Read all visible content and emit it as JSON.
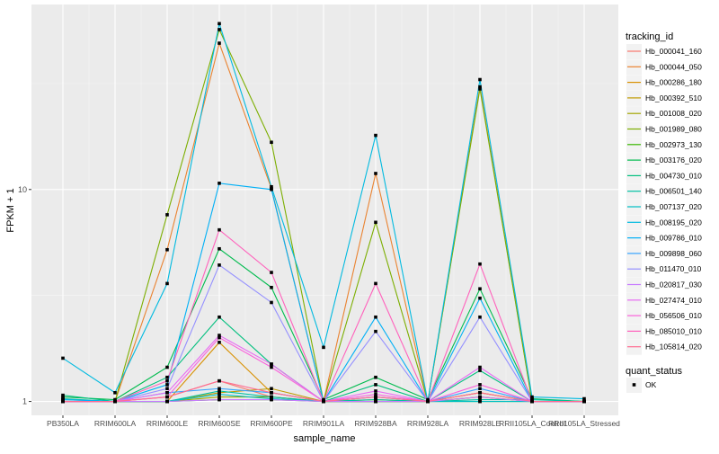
{
  "chart_data": {
    "type": "line",
    "xlabel": "sample_name",
    "ylabel": "FPKM + 1",
    "yscale": "log10",
    "ylim": [
      0.86,
      74.6
    ],
    "yticks": [
      {
        "value": 1,
        "label": "1"
      },
      {
        "value": 10,
        "label": "10"
      }
    ],
    "categories": [
      "PB350LA",
      "RRIM600LA",
      "RRIM600LE",
      "RRIM600SE",
      "RRIM600PE",
      "RRIM901LA",
      "RRIM928BA",
      "RRIM928LA",
      "RRIM928LE",
      "RRII105LA_Control",
      "RRII105LA_Stressed"
    ],
    "legend_title": "tracking_id",
    "legend_position": "right",
    "shape_legend": {
      "title": "quant_status",
      "entries": [
        "OK"
      ]
    },
    "series": [
      {
        "name": "Hb_000041_160",
        "color": "#F8766D",
        "values": [
          1.02,
          1.0,
          1.05,
          1.25,
          1.05,
          1.0,
          1.05,
          1.0,
          1.1,
          1.0,
          1.0
        ]
      },
      {
        "name": "Hb_000044_050",
        "color": "#EA8331",
        "values": [
          1.0,
          1.0,
          5.2,
          49,
          10.1,
          1.0,
          11.9,
          1.0,
          30.5,
          1.0,
          1.0
        ]
      },
      {
        "name": "Hb_000286_180",
        "color": "#D89000",
        "values": [
          1.0,
          1.0,
          1.0,
          1.9,
          1.1,
          1.0,
          1.02,
          1.0,
          1.05,
          1.0,
          1.0
        ]
      },
      {
        "name": "Hb_000392_510",
        "color": "#C09B00",
        "values": [
          1.0,
          1.0,
          1.0,
          1.1,
          1.15,
          1.0,
          1.0,
          1.0,
          1.1,
          1.0,
          1.0
        ]
      },
      {
        "name": "Hb_001008_020",
        "color": "#A3A500",
        "values": [
          1.0,
          1.0,
          1.0,
          1.05,
          1.05,
          1.0,
          1.0,
          1.0,
          1.05,
          1.0,
          1.0
        ]
      },
      {
        "name": "Hb_001989_080",
        "color": "#7CAE00",
        "values": [
          1.0,
          1.0,
          7.6,
          56.8,
          16.7,
          1.0,
          7.0,
          1.0,
          29.8,
          1.0,
          1.0
        ]
      },
      {
        "name": "Hb_002973_130",
        "color": "#39B600",
        "values": [
          1.0,
          1.0,
          1.0,
          1.02,
          1.02,
          1.0,
          1.0,
          1.0,
          1.0,
          1.0,
          1.0
        ]
      },
      {
        "name": "Hb_003176_020",
        "color": "#00BB4E",
        "values": [
          1.05,
          1.02,
          1.45,
          5.25,
          3.45,
          1.02,
          1.3,
          1.02,
          3.4,
          1.03,
          1.0
        ]
      },
      {
        "name": "Hb_004730_010",
        "color": "#00BF7D",
        "values": [
          1.07,
          1.0,
          1.3,
          2.5,
          1.5,
          1.0,
          1.2,
          1.0,
          1.4,
          1.0,
          1.0
        ]
      },
      {
        "name": "Hb_006501_140",
        "color": "#00C1A3",
        "values": [
          1.03,
          1.0,
          1.0,
          1.12,
          1.05,
          1.0,
          1.02,
          1.0,
          1.02,
          1.02,
          1.0
        ]
      },
      {
        "name": "Hb_007137_020",
        "color": "#00BFC4",
        "values": [
          1.0,
          1.0,
          1.0,
          1.08,
          1.03,
          1.0,
          1.0,
          1.0,
          1.0,
          1.0,
          1.0
        ]
      },
      {
        "name": "Hb_008195_020",
        "color": "#00BAE0",
        "values": [
          1.6,
          1.1,
          3.6,
          60.6,
          10.3,
          1.8,
          18,
          1.0,
          33,
          1.05,
          1.03
        ]
      },
      {
        "name": "Hb_009786_010",
        "color": "#00B0F6",
        "values": [
          1.02,
          1.0,
          1.2,
          10.7,
          10.0,
          1.0,
          2.5,
          1.0,
          3.07,
          1.0,
          1.0
        ]
      },
      {
        "name": "Hb_009898_060",
        "color": "#35A2FF",
        "values": [
          1.0,
          1.0,
          1.1,
          1.15,
          1.1,
          1.0,
          1.05,
          1.0,
          1.15,
          1.0,
          1.0
        ]
      },
      {
        "name": "Hb_011470_010",
        "color": "#9590FF",
        "values": [
          1.0,
          1.0,
          1.15,
          4.4,
          2.93,
          1.0,
          2.14,
          1.0,
          2.5,
          1.0,
          1.0
        ]
      },
      {
        "name": "Hb_020817_030",
        "color": "#C77CFF",
        "values": [
          1.0,
          1.0,
          1.0,
          1.02,
          1.02,
          1.0,
          1.0,
          1.0,
          1.05,
          1.0,
          1.0
        ]
      },
      {
        "name": "Hb_027474_010",
        "color": "#E76BF3",
        "values": [
          1.0,
          1.0,
          1.1,
          2.05,
          1.5,
          1.0,
          1.12,
          1.0,
          1.45,
          1.0,
          1.0
        ]
      },
      {
        "name": "Hb_056506_010",
        "color": "#FA62DB",
        "values": [
          1.0,
          1.0,
          1.05,
          2.0,
          1.45,
          1.0,
          1.08,
          1.0,
          1.2,
          1.0,
          1.0
        ]
      },
      {
        "name": "Hb_085010_010",
        "color": "#FF62BC",
        "values": [
          1.0,
          1.0,
          1.25,
          6.45,
          4.06,
          1.0,
          3.6,
          1.0,
          4.45,
          1.0,
          1.0
        ]
      },
      {
        "name": "Hb_105814_020",
        "color": "#FF6C91",
        "values": [
          1.0,
          1.0,
          1.05,
          1.25,
          1.1,
          1.0,
          1.05,
          1.0,
          1.1,
          1.0,
          1.0
        ]
      }
    ]
  }
}
